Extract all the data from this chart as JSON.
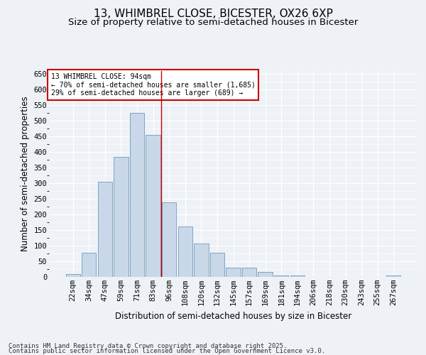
{
  "title_line1": "13, WHIMBREL CLOSE, BICESTER, OX26 6XP",
  "title_line2": "Size of property relative to semi-detached houses in Bicester",
  "xlabel": "Distribution of semi-detached houses by size in Bicester",
  "ylabel": "Number of semi-detached properties",
  "categories": [
    "22sqm",
    "34sqm",
    "47sqm",
    "59sqm",
    "71sqm",
    "83sqm",
    "96sqm",
    "108sqm",
    "120sqm",
    "132sqm",
    "145sqm",
    "157sqm",
    "169sqm",
    "181sqm",
    "194sqm",
    "206sqm",
    "218sqm",
    "230sqm",
    "243sqm",
    "255sqm",
    "267sqm"
  ],
  "values": [
    8,
    77,
    305,
    385,
    525,
    455,
    238,
    162,
    107,
    78,
    30,
    30,
    17,
    5,
    5,
    0,
    0,
    0,
    0,
    0,
    5
  ],
  "bar_color": "#c8d8e8",
  "bar_edge_color": "#5a8ab0",
  "vline_x": 5.5,
  "vline_color": "#cc0000",
  "annotation_text": "13 WHIMBREL CLOSE: 94sqm\n← 70% of semi-detached houses are smaller (1,685)\n29% of semi-detached houses are larger (689) →",
  "annotation_box_color": "#cc0000",
  "ylim": [
    0,
    660
  ],
  "yticks": [
    0,
    50,
    100,
    150,
    200,
    250,
    300,
    350,
    400,
    450,
    500,
    550,
    600,
    650
  ],
  "footer_line1": "Contains HM Land Registry data © Crown copyright and database right 2025.",
  "footer_line2": "Contains public sector information licensed under the Open Government Licence v3.0.",
  "bg_color": "#eef2f7",
  "title_fontsize": 11,
  "subtitle_fontsize": 9.5,
  "axis_label_fontsize": 8.5,
  "tick_fontsize": 7.5,
  "footer_fontsize": 6.5
}
